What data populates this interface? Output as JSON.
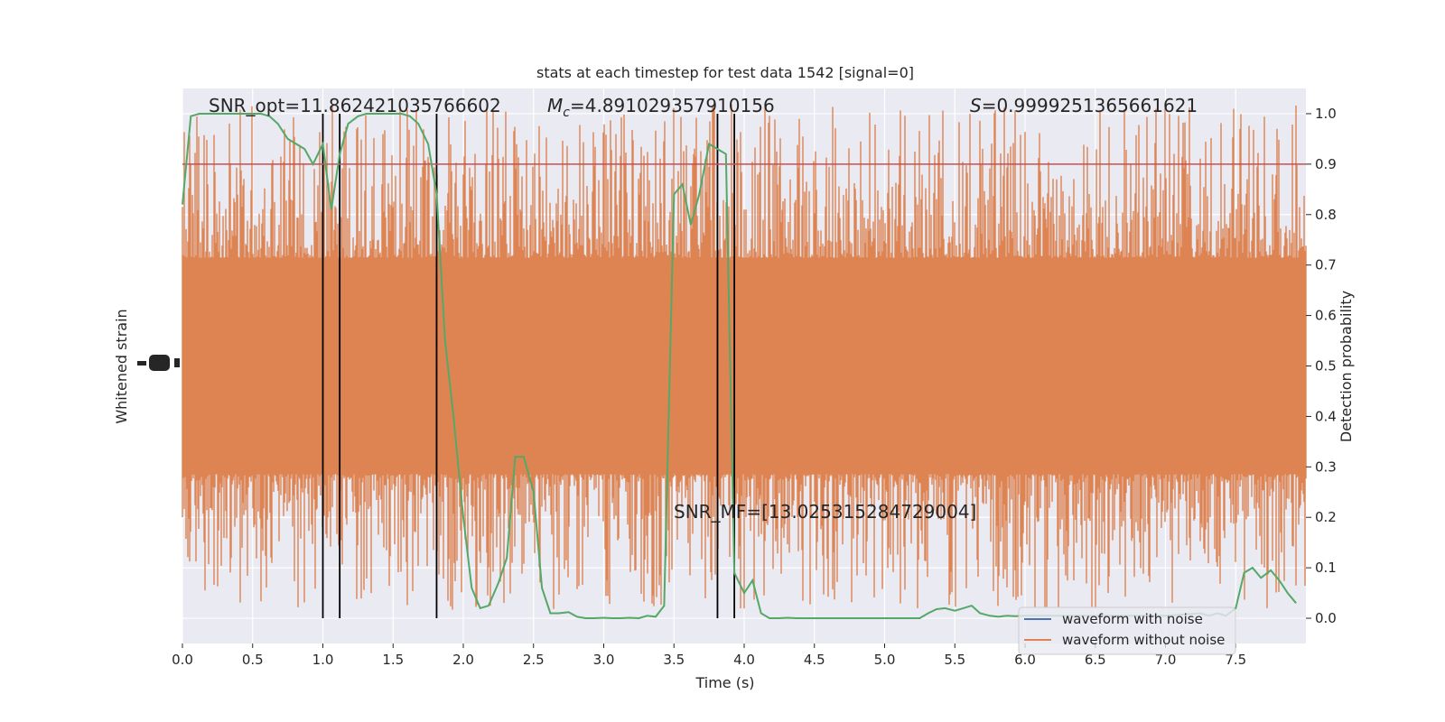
{
  "chart_data": {
    "type": "line",
    "title": "stats at each timestep for test data 1542 [signal=0]",
    "xlabel": "Time (s)",
    "ylabel_left": "Whitened strain",
    "ylabel_right": "Detection probability",
    "xlim": [
      0,
      8
    ],
    "ylim_right": [
      -0.05,
      1.05
    ],
    "x_ticks": [
      "0.0",
      "0.5",
      "1.0",
      "1.5",
      "2.0",
      "2.5",
      "3.0",
      "3.5",
      "4.0",
      "4.5",
      "5.0",
      "5.5",
      "6.0",
      "6.5",
      "7.0",
      "7.5"
    ],
    "x_tick_values": [
      0,
      0.5,
      1,
      1.5,
      2,
      2.5,
      3,
      3.5,
      4,
      4.5,
      5,
      5.5,
      6,
      6.5,
      7,
      7.5
    ],
    "y_right_ticks": [
      "0.0",
      "0.1",
      "0.2",
      "0.3",
      "0.4",
      "0.5",
      "0.6",
      "0.7",
      "0.8",
      "0.9",
      "1.0"
    ],
    "y_right_tick_values": [
      0,
      0.1,
      0.2,
      0.3,
      0.4,
      0.5,
      0.6,
      0.7,
      0.8,
      0.9,
      1.0
    ],
    "annotations": {
      "snr_opt": "SNR_opt=11.862421035766602",
      "mc_symbol": "M",
      "mc_sub": "c",
      "mc_value": "=4.891029357910156",
      "s_symbol": "S",
      "s_value": "=0.9999251365661621",
      "snr_mf": "SNR_MF=[13.025315284729004]"
    },
    "threshold": 0.9,
    "vertical_lines": [
      1.0,
      1.12,
      1.81,
      3.81,
      3.93
    ],
    "legend": {
      "position": "lower-right",
      "entries": [
        {
          "label": "waveform with noise",
          "color": "#4c72b0"
        },
        {
          "label": "waveform without noise",
          "color": "#dd8452"
        }
      ]
    },
    "colors": {
      "background": "#eaeaf2",
      "grid": "#ffffff",
      "waveform_without_noise": "#dd8452",
      "waveform_with_noise": "#4c72b0",
      "probability": "#55a868",
      "threshold": "#c44e52",
      "vertical": "#000000"
    },
    "series": [
      {
        "name": "Detection probability",
        "x": [
          0,
          0.06,
          0.12,
          0.18,
          0.25,
          0.31,
          0.37,
          0.43,
          0.5,
          0.56,
          0.62,
          0.68,
          0.75,
          0.81,
          0.87,
          0.93,
          1.0,
          1.06,
          1.12,
          1.18,
          1.25,
          1.31,
          1.37,
          1.43,
          1.5,
          1.56,
          1.62,
          1.68,
          1.75,
          1.81,
          1.87,
          1.93,
          2.0,
          2.06,
          2.12,
          2.18,
          2.25,
          2.31,
          2.37,
          2.43,
          2.5,
          2.56,
          2.62,
          2.68,
          2.75,
          2.81,
          2.87,
          2.93,
          3.0,
          3.06,
          3.12,
          3.18,
          3.25,
          3.31,
          3.37,
          3.43,
          3.5,
          3.56,
          3.62,
          3.68,
          3.75,
          3.81,
          3.87,
          3.93,
          4.0,
          4.06,
          4.12,
          4.18,
          4.25,
          4.31,
          4.37,
          4.43,
          4.5,
          4.75,
          5.0,
          5.25,
          5.31,
          5.37,
          5.43,
          5.5,
          5.56,
          5.62,
          5.68,
          5.75,
          5.81,
          5.87,
          5.93,
          6.0,
          6.5,
          7.0,
          7.25,
          7.31,
          7.37,
          7.43,
          7.5,
          7.56,
          7.62,
          7.68,
          7.75,
          7.81,
          7.87,
          7.93
        ],
        "y": [
          0.82,
          0.995,
          1.0,
          1.0,
          1.0,
          1.0,
          1.0,
          1.0,
          1.0,
          1.0,
          0.995,
          0.98,
          0.95,
          0.94,
          0.93,
          0.9,
          0.94,
          0.81,
          0.92,
          0.98,
          0.995,
          1.0,
          1.0,
          1.0,
          1.0,
          1.0,
          0.995,
          0.98,
          0.94,
          0.84,
          0.55,
          0.4,
          0.2,
          0.06,
          0.02,
          0.025,
          0.07,
          0.12,
          0.32,
          0.32,
          0.25,
          0.06,
          0.01,
          0.01,
          0.012,
          0.003,
          0.0,
          0.0,
          0.001,
          0.0,
          0.0,
          0.001,
          0.0,
          0.005,
          0.003,
          0.025,
          0.84,
          0.86,
          0.78,
          0.84,
          0.94,
          0.93,
          0.92,
          0.09,
          0.05,
          0.075,
          0.01,
          0.0,
          0.0,
          0.001,
          0.0,
          0.0,
          0.0,
          0.0,
          0.0,
          0.0,
          0.01,
          0.018,
          0.02,
          0.015,
          0.02,
          0.025,
          0.01,
          0.005,
          0.003,
          0.005,
          0.004,
          0.005,
          0.005,
          0.005,
          0.01,
          0.005,
          0.01,
          0.005,
          0.02,
          0.09,
          0.1,
          0.08,
          0.095,
          0.075,
          0.05,
          0.03
        ]
      }
    ]
  }
}
